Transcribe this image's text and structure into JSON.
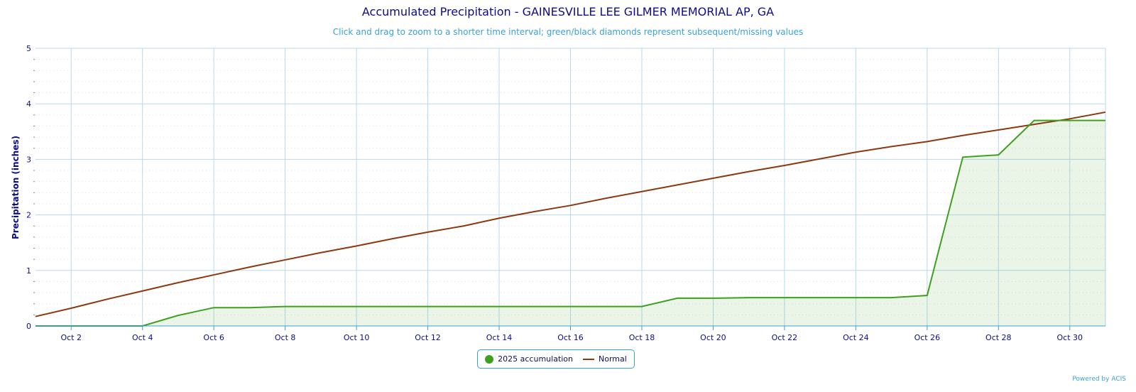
{
  "chart_data": {
    "type": "line",
    "title": "Accumulated Precipitation - GAINESVILLE LEE GILMER MEMORIAL AP, GA",
    "subtitle": "Click and drag to zoom to a shorter time interval; green/black diamonds represent subsequent/missing values",
    "xlabel": "",
    "ylabel": "Precipitation (inches)",
    "ylim": [
      0,
      5
    ],
    "yticks": [
      "0",
      "1",
      "2",
      "3",
      "4",
      "5"
    ],
    "xlim": [
      1,
      31
    ],
    "xticks": [
      {
        "day": 2,
        "label": "Oct 2"
      },
      {
        "day": 4,
        "label": "Oct 4"
      },
      {
        "day": 6,
        "label": "Oct 6"
      },
      {
        "day": 8,
        "label": "Oct 8"
      },
      {
        "day": 10,
        "label": "Oct 10"
      },
      {
        "day": 12,
        "label": "Oct 12"
      },
      {
        "day": 14,
        "label": "Oct 14"
      },
      {
        "day": 16,
        "label": "Oct 16"
      },
      {
        "day": 18,
        "label": "Oct 18"
      },
      {
        "day": 20,
        "label": "Oct 20"
      },
      {
        "day": 22,
        "label": "Oct 22"
      },
      {
        "day": 24,
        "label": "Oct 24"
      },
      {
        "day": 26,
        "label": "Oct 26"
      },
      {
        "day": 28,
        "label": "Oct 28"
      },
      {
        "day": 30,
        "label": "Oct 30"
      }
    ],
    "x": [
      1,
      2,
      3,
      4,
      5,
      6,
      7,
      8,
      9,
      10,
      11,
      12,
      13,
      14,
      15,
      16,
      17,
      18,
      19,
      20,
      21,
      22,
      23,
      24,
      25,
      26,
      27,
      28,
      29,
      30,
      31
    ],
    "series": [
      {
        "name": "2025 accumulation",
        "color": "#3fa020",
        "values": [
          0,
          0,
          0,
          0,
          0.19,
          0.33,
          0.33,
          0.35,
          0.35,
          0.35,
          0.35,
          0.35,
          0.35,
          0.35,
          0.35,
          0.35,
          0.35,
          0.35,
          0.5,
          0.5,
          0.51,
          0.51,
          0.51,
          0.51,
          0.51,
          0.55,
          3.04,
          3.08,
          3.7,
          3.7,
          3.7
        ]
      },
      {
        "name": "Normal",
        "color": "#8b3a10",
        "values": [
          0.17,
          0.32,
          0.48,
          0.63,
          0.78,
          0.92,
          1.06,
          1.19,
          1.32,
          1.44,
          1.57,
          1.69,
          1.8,
          1.94,
          2.06,
          2.17,
          2.3,
          2.42,
          2.54,
          2.66,
          2.78,
          2.89,
          3.01,
          3.13,
          3.23,
          3.32,
          3.43,
          3.53,
          3.63,
          3.73,
          3.85
        ]
      }
    ],
    "grid": true,
    "legend": "bottom-center"
  },
  "credit": "Powered by ACIS"
}
